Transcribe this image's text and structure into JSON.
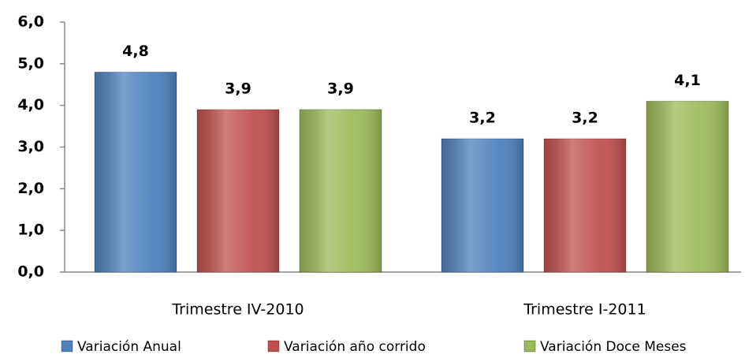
{
  "chart_data": {
    "type": "bar",
    "categories": [
      "Trimestre IV-2010",
      "Trimestre I-2011"
    ],
    "series": [
      {
        "name": "Variación Anual",
        "color": "#4f81bd",
        "values": [
          4.8,
          3.2
        ],
        "value_labels": [
          "4,8",
          "3,2"
        ]
      },
      {
        "name": "Variación año corrido",
        "color": "#c0504d",
        "values": [
          3.9,
          3.2
        ],
        "value_labels": [
          "3,9",
          "3,2"
        ]
      },
      {
        "name": "Variación Doce Meses",
        "color": "#9bbb59",
        "values": [
          3.9,
          4.1
        ],
        "value_labels": [
          "3,9",
          "4,1"
        ]
      }
    ],
    "ylim": [
      0,
      6
    ],
    "yticks": [
      {
        "value": 0,
        "label": "0,0"
      },
      {
        "value": 1,
        "label": "1,0"
      },
      {
        "value": 2,
        "label": "2,0"
      },
      {
        "value": 3,
        "label": "3,0"
      },
      {
        "value": 4,
        "label": "4,0"
      },
      {
        "value": 5,
        "label": "5,0"
      },
      {
        "value": 6,
        "label": "6,0"
      }
    ],
    "legend": "bottom"
  }
}
